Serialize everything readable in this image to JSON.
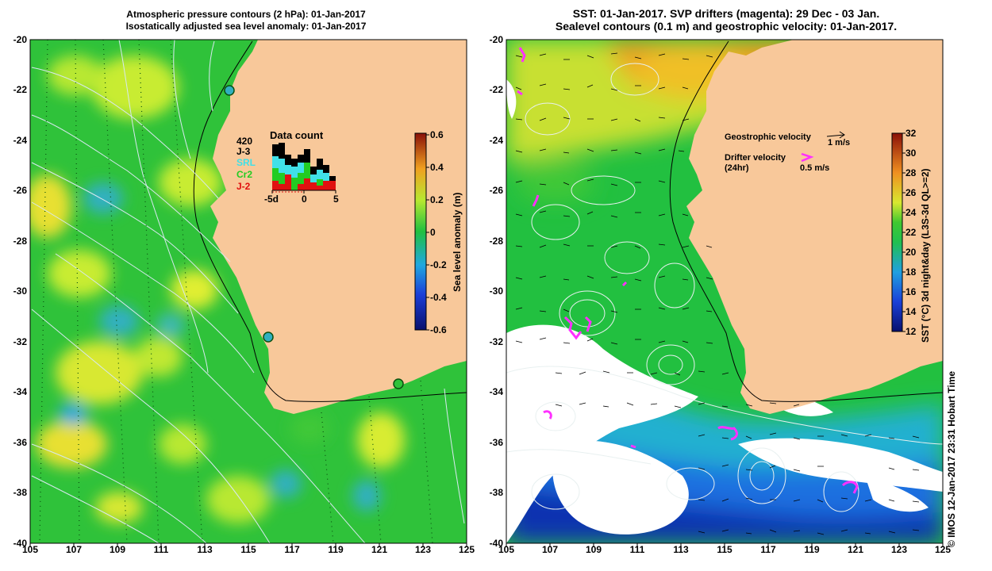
{
  "left_panel": {
    "title_line1": "Atmospheric pressure contours (2 hPa): 01-Jan-2017",
    "title_line2": "Isostatically adjusted sea level anomaly: 01-Jan-2017",
    "colorbar_label": "Sea level anomaly (m)",
    "colorbar_ticks": [
      "0.6",
      "0.4",
      "0.2",
      "0",
      "-0.2",
      "-0.4",
      "-0.6"
    ],
    "data_count": {
      "title": "Data count",
      "max_label": "420",
      "satellites": [
        {
          "name": "J-3",
          "color": "#000000"
        },
        {
          "name": "SRL",
          "color": "#40e0e8"
        },
        {
          "name": "Cr2",
          "color": "#22cc22"
        },
        {
          "name": "J-2",
          "color": "#e01010"
        }
      ],
      "axis_labels": [
        "-5d",
        "0",
        "5"
      ]
    }
  },
  "right_panel": {
    "title_line1": "SST: 01-Jan-2017. SVP drifters (magenta): 29 Dec - 03 Jan.",
    "title_line2": "Sealevel contours (0.1 m) and geostrophic velocity: 01-Jan-2017.",
    "geo_velocity_label": "Geostrophic velocity",
    "geo_velocity_scale": "1 m/s",
    "drifter_label_line1": "Drifter velocity",
    "drifter_label_line2": "(24hr)",
    "drifter_scale": "0.5 m/s",
    "colorbar_label": "SST (°C) 3d night&day (L3S-3d QL>=2)",
    "colorbar_ticks": [
      "32",
      "30",
      "28",
      "26",
      "24",
      "22",
      "20",
      "18",
      "16",
      "14",
      "12"
    ]
  },
  "x_ticks": [
    "105",
    "107",
    "109",
    "111",
    "113",
    "115",
    "117",
    "119",
    "121",
    "123",
    "125"
  ],
  "y_ticks": [
    "-20",
    "-22",
    "-24",
    "-26",
    "-28",
    "-30",
    "-32",
    "-34",
    "-36",
    "-38",
    "-40"
  ],
  "credit": "© IMOS 12-Jan-2017 23:31 Hobart Time",
  "colors": {
    "land": "#f8c89a",
    "sla_main": "#2fc23a",
    "sla_high": "#c8ec30",
    "sla_low": "#30b0c0",
    "sst_warm": "#f0a020",
    "sst_mid": "#22c040",
    "sst_cool": "#1a60e0"
  }
}
